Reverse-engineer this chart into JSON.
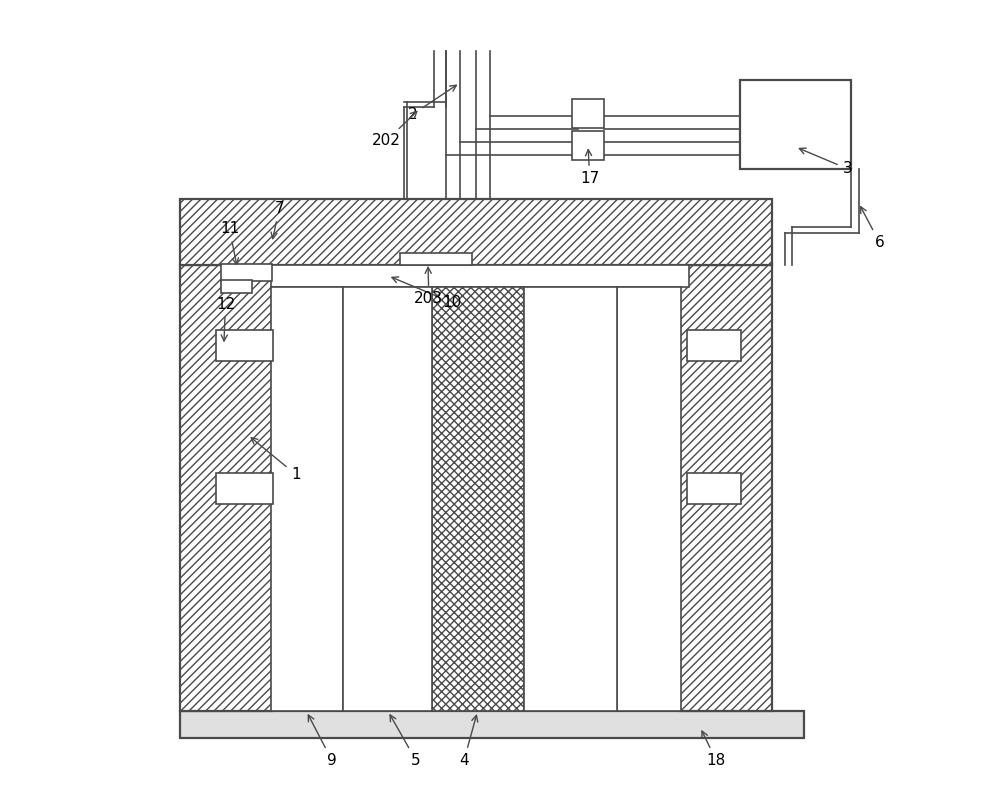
{
  "bg_color": "#ffffff",
  "line_color": "#4a4a4a",
  "fig_width": 10.0,
  "fig_height": 8.06
}
